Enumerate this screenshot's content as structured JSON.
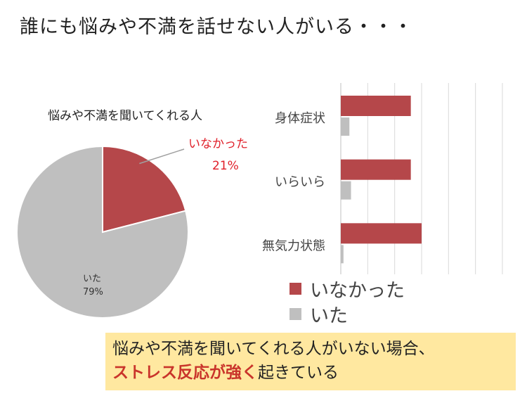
{
  "slide": {
    "title": "誰にも悩みや不満を話せない人がいる・・・",
    "callout": {
      "line1": "悩みや不満を聞いてくれる人がいない場合、",
      "emphasis": "ストレス反応が強く",
      "rest": "起きている"
    }
  },
  "chart_data": [
    {
      "type": "pie",
      "title": "悩みや不満を聞いてくれる人",
      "slices": [
        {
          "label": "いなかった",
          "value": 21,
          "value_label": "21%",
          "color": "#b5474a"
        },
        {
          "label": "いた",
          "value": 79,
          "value_label": "79%",
          "color": "#bfbfbf"
        }
      ]
    },
    {
      "type": "bar",
      "orientation": "horizontal",
      "categories": [
        "身体症状",
        "いらいら",
        "無気力状態"
      ],
      "series": [
        {
          "name": "いなかった",
          "values": [
            1.3,
            1.3,
            1.5
          ],
          "color": "#b5474a"
        },
        {
          "name": "いた",
          "values": [
            0.16,
            0.19,
            0.05
          ],
          "color": "#bfbfbf"
        }
      ],
      "xlim": [
        0,
        3
      ],
      "grid": true,
      "legend": "bottom"
    }
  ]
}
